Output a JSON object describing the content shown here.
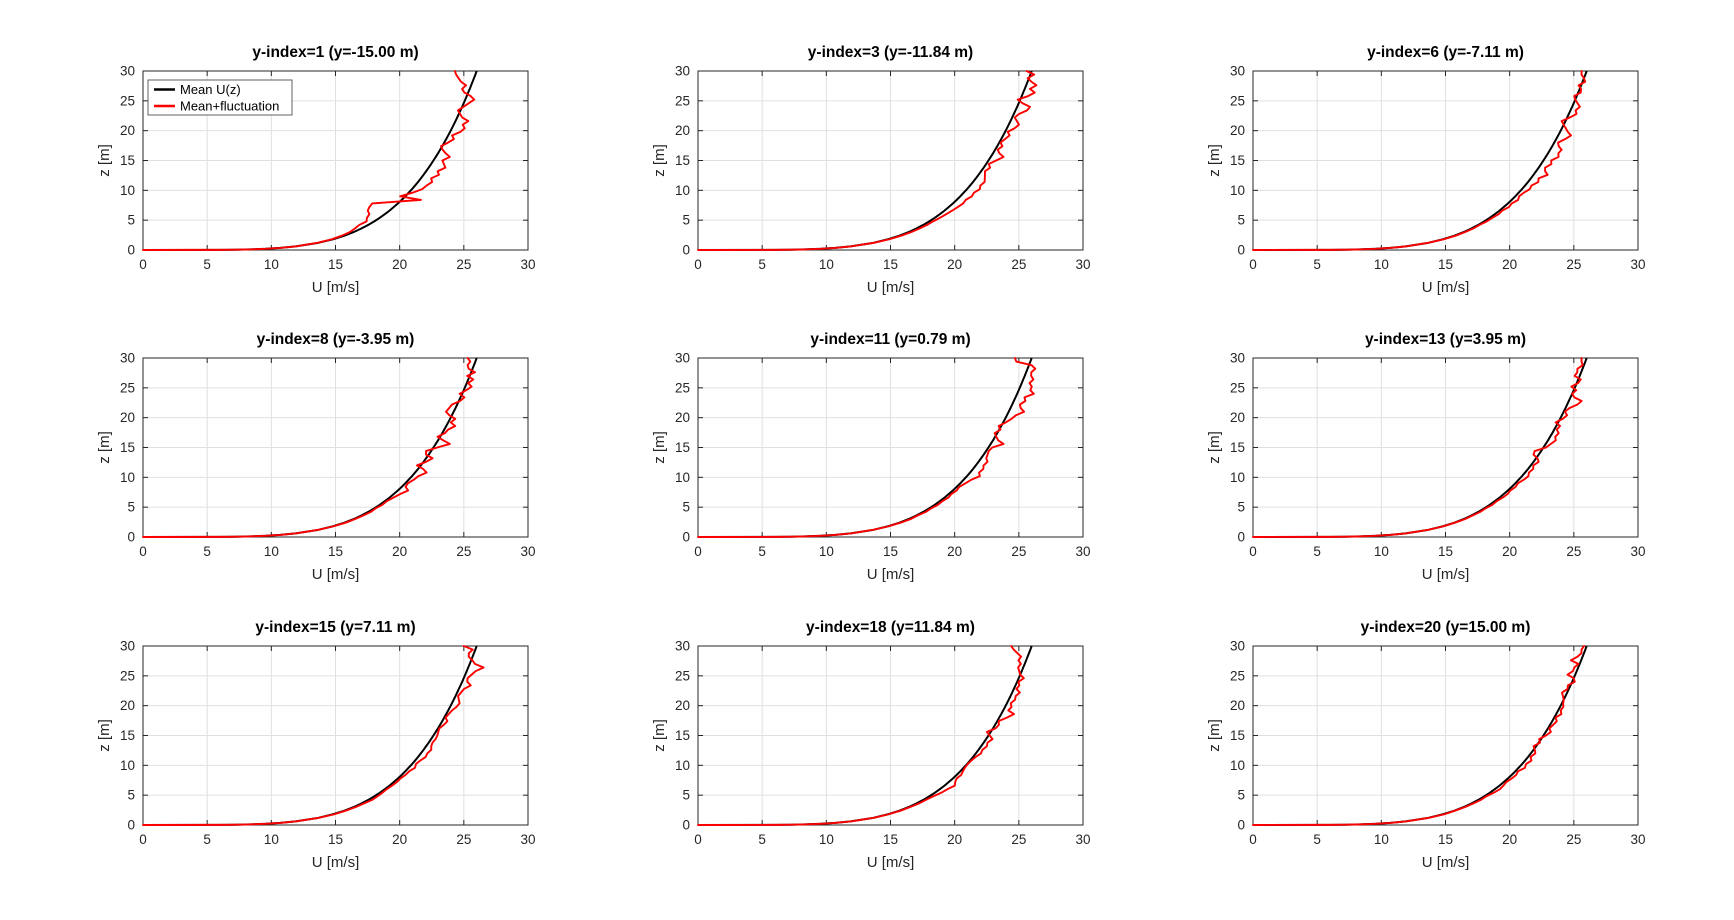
{
  "figure": {
    "background": "#ffffff"
  },
  "styles": {
    "axis_color": "#262626",
    "grid_color": "#e0e0e0",
    "title_color": "#000000",
    "mean_line_color": "#000000",
    "fluctuation_line_color": "#ff0000",
    "legend_border_color": "#616161"
  },
  "chart_data": {
    "type": "line",
    "layout": {
      "rows": 3,
      "cols": 3
    },
    "xlabel": "U [m/s]",
    "ylabel": "z [m]",
    "xlim": [
      0,
      30
    ],
    "ylim": [
      0,
      30
    ],
    "xticks": [
      0,
      5,
      10,
      15,
      20,
      25,
      30
    ],
    "yticks": [
      0,
      5,
      10,
      15,
      20,
      25,
      30
    ],
    "grid": true,
    "legend": {
      "position": "northwest",
      "shown_on_subplot": 1,
      "entries": [
        {
          "label": "Mean U(z)",
          "color": "#000000"
        },
        {
          "label": "Mean+fluctuation",
          "color": "#ff0000"
        }
      ]
    },
    "note": "Black curve: (z_grid, mean_U). Red curve: (z_grid, mean_U + fluctuation_delta_U) per subplot.",
    "z_grid": [
      0,
      0.02,
      0.05,
      0.1,
      0.2,
      0.35,
      0.6,
      1.2,
      1.8,
      2.4,
      3,
      3.6,
      4.2,
      4.8,
      5.4,
      6,
      6.6,
      7.2,
      7.8,
      8.4,
      9,
      9.6,
      10.2,
      10.8,
      11.4,
      12,
      12.6,
      13.2,
      13.8,
      14.4,
      15,
      15.6,
      16.2,
      16.8,
      17.4,
      18,
      18.6,
      19.2,
      19.8,
      20.4,
      21,
      21.6,
      22.2,
      22.8,
      23.4,
      24,
      24.6,
      25.2,
      25.8,
      26.4,
      27,
      27.6,
      28.2,
      28.8,
      29.4,
      30
    ],
    "mean_U": [
      0,
      6.02,
      7.23,
      8.31,
      9.55,
      10.68,
      11.89,
      13.66,
      14.81,
      15.69,
      16.41,
      17.01,
      17.55,
      18.02,
      18.45,
      18.84,
      19.21,
      19.54,
      19.86,
      20.16,
      20.44,
      20.7,
      20.96,
      21.2,
      21.43,
      21.65,
      21.86,
      22.06,
      22.26,
      22.45,
      22.63,
      22.81,
      22.99,
      23.15,
      23.32,
      23.47,
      23.63,
      23.78,
      23.93,
      24.07,
      24.21,
      24.35,
      24.48,
      24.61,
      24.74,
      24.87,
      24.99,
      25.11,
      25.23,
      25.34,
      25.46,
      25.57,
      25.68,
      25.79,
      25.9,
      26.0
    ],
    "subplots": [
      {
        "y_index": 1,
        "y_m": -15.0,
        "title": "y-index=1 (y=-15.00 m)",
        "fluctuation_delta_U": [
          0,
          0,
          0,
          0,
          0,
          0,
          0,
          -0.05,
          -0.1,
          -0.2,
          -0.3,
          -0.5,
          -0.7,
          -0.6,
          -1.0,
          -1.2,
          -1.7,
          -1.9,
          -2.0,
          1.5,
          -0.4,
          0.3,
          0.8,
          0.9,
          1.1,
          0.8,
          1.2,
          0.9,
          1.3,
          1.0,
          0.7,
          1.1,
          0.6,
          0.2,
          -0.1,
          0.3,
          0.6,
          0.3,
          0.8,
          1.0,
          0.7,
          1.0,
          0.4,
          0.1,
          -0.2,
          0.1,
          0.4,
          0.7,
          0.3,
          -0.3,
          -0.6,
          -0.4,
          -0.9,
          -1.2,
          -1.5,
          -1.7
        ]
      },
      {
        "y_index": 3,
        "y_m": -11.84,
        "title": "y-index=3 (y=-11.84 m)",
        "fluctuation_delta_U": [
          0,
          0,
          0,
          0,
          0,
          0,
          0,
          0.05,
          0.1,
          0.15,
          0.2,
          0.25,
          0.3,
          0.3,
          0.4,
          0.5,
          0.6,
          0.7,
          0.8,
          0.7,
          0.9,
          0.8,
          1.0,
          0.8,
          0.9,
          0.7,
          0.5,
          0.3,
          0.5,
          0.2,
          0.6,
          1.0,
          0.5,
          0.2,
          0.4,
          0.1,
          0.3,
          0.5,
          0.2,
          0.6,
          0.8,
          0.5,
          0.2,
          0.4,
          0.9,
          1.0,
          0.3,
          -0.2,
          0.5,
          0.9,
          0.4,
          0.8,
          0.3,
          -0.1,
          0.3,
          -0.4
        ]
      },
      {
        "y_index": 6,
        "y_m": -7.11,
        "title": "y-index=6 (y=-7.11 m)",
        "fluctuation_delta_U": [
          0,
          0,
          0,
          0,
          0,
          0,
          0,
          0,
          0.05,
          0.1,
          0.1,
          0.15,
          0.1,
          0.2,
          0.2,
          0.3,
          0.2,
          0.4,
          0.3,
          0.5,
          0.3,
          0.4,
          0.6,
          0.5,
          0.8,
          0.6,
          1.1,
          0.7,
          0.5,
          0.8,
          0.6,
          1.0,
          0.8,
          0.9,
          0.5,
          0.3,
          0.7,
          1.0,
          0.6,
          0.3,
          0.0,
          -0.3,
          0.2,
          0.6,
          0.4,
          0.6,
          0.3,
          0.0,
          -0.2,
          0.2,
          0.1,
          -0.2,
          0.2,
          0.0,
          -0.3,
          -0.4
        ]
      },
      {
        "y_index": 8,
        "y_m": -3.95,
        "title": "y-index=8 (y=-3.95 m)",
        "fluctuation_delta_U": [
          0,
          0,
          0,
          0,
          0,
          0,
          0,
          0,
          0.05,
          0.1,
          0.1,
          0.15,
          0.2,
          0.1,
          0.2,
          0.15,
          0.3,
          0.5,
          0.8,
          0.3,
          0.2,
          0.4,
          0.5,
          0.9,
          0.4,
          -0.3,
          0.2,
          0.5,
          -0.2,
          -0.4,
          0.3,
          1.1,
          0.4,
          -0.2,
          0.2,
          0.3,
          0.7,
          0.2,
          0.4,
          -0.2,
          -0.6,
          -0.5,
          -0.4,
          0.1,
          0.3,
          -0.2,
          0.2,
          0.5,
          0.1,
          0.4,
          -0.2,
          0.3,
          -0.3,
          -0.5,
          -0.4,
          -0.7
        ]
      },
      {
        "y_index": 11,
        "y_m": 0.79,
        "title": "y-index=11 (y=0.79 m)",
        "fluctuation_delta_U": [
          0,
          0,
          0,
          0,
          0,
          0,
          0,
          0,
          0.05,
          0.1,
          0.15,
          0.1,
          0.2,
          0.15,
          0.25,
          0.2,
          0.3,
          0.2,
          0.3,
          0.2,
          0.4,
          0.6,
          1.0,
          0.7,
          0.8,
          0.6,
          0.7,
          0.4,
          0.3,
          0.2,
          0.3,
          1.0,
          0.4,
          0.1,
          -0.2,
          0.1,
          -0.2,
          0.2,
          0.5,
          0.7,
          1.2,
          0.8,
          0.6,
          0.9,
          0.7,
          1.3,
          0.9,
          0.9,
          0.6,
          0.8,
          0.5,
          0.4,
          0.6,
          0.2,
          -1.1,
          -1.3
        ]
      },
      {
        "y_index": 13,
        "y_m": 3.95,
        "title": "y-index=13 (y=3.95 m)",
        "fluctuation_delta_U": [
          0,
          0,
          0,
          0,
          0,
          0,
          0,
          0,
          0.05,
          0.05,
          0.1,
          0.1,
          0.15,
          0.1,
          0.2,
          0.15,
          0.25,
          0.3,
          0.2,
          0.3,
          0.2,
          0.4,
          0.5,
          0.3,
          0.4,
          0.2,
          0.4,
          0.1,
          -0.4,
          -0.5,
          0.2,
          0.4,
          0.6,
          0.4,
          0.5,
          0.2,
          0.3,
          -0.2,
          0.2,
          0.4,
          0.1,
          0.3,
          0.8,
          1.0,
          0.3,
          0.0,
          0.2,
          -0.3,
          0.1,
          0.2,
          -0.4,
          -0.3,
          -0.4,
          -0.1,
          -0.3,
          -0.4
        ]
      },
      {
        "y_index": 15,
        "y_m": 7.11,
        "title": "y-index=15 (y=7.11 m)",
        "fluctuation_delta_U": [
          0,
          0,
          0,
          0,
          0,
          0,
          0,
          0.05,
          0.1,
          0.1,
          0.15,
          0.2,
          0.3,
          0.25,
          0.2,
          0.15,
          0.2,
          0.25,
          0.2,
          0.3,
          0.3,
          0.5,
          0.3,
          0.4,
          0.6,
          0.5,
          0.6,
          0.4,
          0.3,
          0.35,
          0.3,
          0.2,
          0.1,
          0.3,
          0.4,
          0.1,
          0.2,
          0.3,
          0.5,
          0.6,
          0.4,
          0.2,
          0.3,
          0.4,
          0.8,
          0.4,
          0.3,
          0.5,
          0.7,
          1.2,
          0.4,
          0.1,
          -0.3,
          -0.4,
          -0.2,
          -1.0
        ]
      },
      {
        "y_index": 18,
        "y_m": 11.84,
        "title": "y-index=18 (y=11.84 m)",
        "fluctuation_delta_U": [
          0,
          0,
          0,
          0,
          0,
          0,
          0,
          0.05,
          0.05,
          0.1,
          0.1,
          0.2,
          0.2,
          0.3,
          0.5,
          0.6,
          0.8,
          0.5,
          0.3,
          0.35,
          0.2,
          0.1,
          0.05,
          0.1,
          0.2,
          0.4,
          0.3,
          0.45,
          0.3,
          0.5,
          0.1,
          -0.3,
          0.2,
          0.3,
          0.1,
          0.6,
          1.0,
          0.4,
          0.5,
          0.3,
          0.5,
          0.4,
          0.6,
          0.2,
          0.3,
          0.1,
          0.4,
          0.0,
          -0.2,
          -0.4,
          -0.3,
          -0.6,
          -0.5,
          -0.9,
          -1.3,
          -1.6
        ]
      },
      {
        "y_index": 20,
        "y_m": 15.0,
        "title": "y-index=20 (y=15.00 m)",
        "fluctuation_delta_U": [
          0,
          0,
          0,
          0,
          0,
          0,
          0,
          0.05,
          0.1,
          0.05,
          0.1,
          0.15,
          0.2,
          0.15,
          0.3,
          0.4,
          0.3,
          0.2,
          0.3,
          0.35,
          0.2,
          0.5,
          0.3,
          0.5,
          0.2,
          0.35,
          0.1,
          -0.2,
          0.1,
          -0.15,
          0.2,
          0.4,
          0.1,
          0.25,
          0.35,
          0.1,
          0.4,
          0.2,
          0.25,
          0.1,
          0.0,
          -0.2,
          -0.4,
          -0.1,
          -0.2,
          0.2,
          0.0,
          -0.6,
          -0.3,
          -0.3,
          -0.1,
          -0.8,
          -0.4,
          -0.2,
          -0.3,
          -0.2
        ]
      }
    ]
  }
}
